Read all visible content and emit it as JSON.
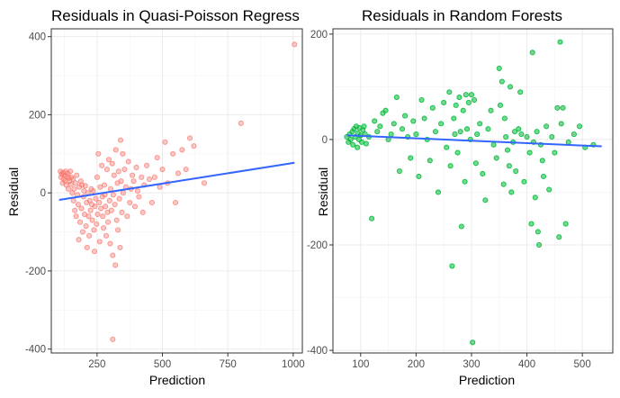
{
  "colors": {
    "qp_points": "#F8766D",
    "rf_points": "#00BA38",
    "smooth_line": "#3366FF"
  },
  "chart_data": [
    {
      "type": "scatter",
      "title": "Residuals in Quasi-Poisson Regress",
      "xlabel": "Prediction",
      "ylabel": "Residual",
      "xlim": [
        75,
        1035
      ],
      "ylim": [
        -410,
        420
      ],
      "xticks": [
        250,
        500,
        750,
        1000
      ],
      "yticks": [
        400,
        200,
        0,
        -200,
        -400
      ],
      "grid": true,
      "trend_line": {
        "x": [
          105,
          1005
        ],
        "y": [
          -18,
          77
        ]
      },
      "points": [
        [
          1005,
          380
        ],
        [
          800,
          178
        ],
        [
          310,
          -375
        ],
        [
          110,
          55
        ],
        [
          112,
          40
        ],
        [
          115,
          48
        ],
        [
          118,
          25
        ],
        [
          120,
          52
        ],
        [
          122,
          35
        ],
        [
          125,
          45
        ],
        [
          128,
          30
        ],
        [
          130,
          55
        ],
        [
          132,
          20
        ],
        [
          135,
          42
        ],
        [
          138,
          50
        ],
        [
          140,
          10
        ],
        [
          142,
          38
        ],
        [
          145,
          30
        ],
        [
          148,
          55
        ],
        [
          150,
          22
        ],
        [
          152,
          40
        ],
        [
          155,
          0
        ],
        [
          158,
          35
        ],
        [
          160,
          -20
        ],
        [
          162,
          10
        ],
        [
          165,
          -45
        ],
        [
          168,
          25
        ],
        [
          170,
          -60
        ],
        [
          172,
          45
        ],
        [
          175,
          -5
        ],
        [
          178,
          -30
        ],
        [
          180,
          -120
        ],
        [
          182,
          15
        ],
        [
          185,
          -75
        ],
        [
          188,
          30
        ],
        [
          190,
          -40
        ],
        [
          192,
          20
        ],
        [
          195,
          -100
        ],
        [
          198,
          -10
        ],
        [
          200,
          5
        ],
        [
          202,
          -55
        ],
        [
          205,
          18
        ],
        [
          208,
          -85
        ],
        [
          210,
          -25
        ],
        [
          212,
          -140
        ],
        [
          215,
          0
        ],
        [
          218,
          -60
        ],
        [
          220,
          -110
        ],
        [
          222,
          -20
        ],
        [
          225,
          -45
        ],
        [
          228,
          10
        ],
        [
          230,
          -30
        ],
        [
          232,
          -70
        ],
        [
          235,
          5
        ],
        [
          238,
          -95
        ],
        [
          240,
          -150
        ],
        [
          242,
          -35
        ],
        [
          245,
          -15
        ],
        [
          248,
          -80
        ],
        [
          250,
          40
        ],
        [
          252,
          -55
        ],
        [
          255,
          100
        ],
        [
          258,
          -25
        ],
        [
          260,
          -125
        ],
        [
          262,
          15
        ],
        [
          265,
          -40
        ],
        [
          268,
          70
        ],
        [
          270,
          -10
        ],
        [
          272,
          -60
        ],
        [
          275,
          -90
        ],
        [
          278,
          20
        ],
        [
          280,
          -5
        ],
        [
          282,
          -35
        ],
        [
          285,
          -110
        ],
        [
          288,
          60
        ],
        [
          290,
          -50
        ],
        [
          292,
          -75
        ],
        [
          295,
          85
        ],
        [
          298,
          -20
        ],
        [
          300,
          -130
        ],
        [
          302,
          10
        ],
        [
          305,
          -45
        ],
        [
          308,
          75
        ],
        [
          310,
          -160
        ],
        [
          312,
          -5
        ],
        [
          315,
          45
        ],
        [
          318,
          -30
        ],
        [
          320,
          -185
        ],
        [
          322,
          110
        ],
        [
          325,
          -70
        ],
        [
          328,
          25
        ],
        [
          330,
          -95
        ],
        [
          332,
          55
        ],
        [
          335,
          -15
        ],
        [
          338,
          -140
        ],
        [
          340,
          135
        ],
        [
          342,
          30
        ],
        [
          345,
          -50
        ],
        [
          348,
          100
        ],
        [
          350,
          0
        ],
        [
          355,
          60
        ],
        [
          360,
          15
        ],
        [
          365,
          -60
        ],
        [
          370,
          80
        ],
        [
          375,
          -25
        ],
        [
          380,
          10
        ],
        [
          385,
          45
        ],
        [
          390,
          30
        ],
        [
          395,
          -35
        ],
        [
          400,
          65
        ],
        [
          405,
          5
        ],
        [
          410,
          -10
        ],
        [
          420,
          40
        ],
        [
          425,
          -50
        ],
        [
          430,
          20
        ],
        [
          440,
          70
        ],
        [
          450,
          35
        ],
        [
          460,
          -25
        ],
        [
          470,
          40
        ],
        [
          480,
          90
        ],
        [
          490,
          15
        ],
        [
          500,
          60
        ],
        [
          510,
          130
        ],
        [
          520,
          25
        ],
        [
          540,
          100
        ],
        [
          550,
          -25
        ],
        [
          560,
          50
        ],
        [
          575,
          110
        ],
        [
          590,
          60
        ],
        [
          605,
          140
        ],
        [
          620,
          120
        ],
        [
          660,
          25
        ]
      ]
    },
    {
      "type": "scatter",
      "title": "Residuals in Random Forests",
      "xlabel": "Prediction",
      "ylabel": "Residual",
      "xlim": [
        50,
        555
      ],
      "ylim": [
        -405,
        210
      ],
      "xticks": [
        100,
        200,
        300,
        400,
        500
      ],
      "yticks": [
        200,
        0,
        -200,
        -400
      ],
      "grid": true,
      "trend_line": {
        "x": [
          75,
          535
        ],
        "y": [
          8,
          -13
        ]
      },
      "points": [
        [
          75,
          5
        ],
        [
          78,
          -5
        ],
        [
          80,
          10
        ],
        [
          82,
          0
        ],
        [
          85,
          15
        ],
        [
          86,
          -10
        ],
        [
          88,
          20
        ],
        [
          90,
          5
        ],
        [
          92,
          25
        ],
        [
          94,
          -15
        ],
        [
          95,
          12
        ],
        [
          97,
          0
        ],
        [
          98,
          22
        ],
        [
          100,
          8
        ],
        [
          102,
          -5
        ],
        [
          104,
          18
        ],
        [
          106,
          25
        ],
        [
          108,
          10
        ],
        [
          110,
          -8
        ],
        [
          115,
          5
        ],
        [
          120,
          -150
        ],
        [
          125,
          35
        ],
        [
          130,
          15
        ],
        [
          135,
          25
        ],
        [
          140,
          50
        ],
        [
          145,
          55
        ],
        [
          150,
          0
        ],
        [
          155,
          10
        ],
        [
          160,
          30
        ],
        [
          165,
          80
        ],
        [
          170,
          -60
        ],
        [
          175,
          20
        ],
        [
          180,
          45
        ],
        [
          185,
          5
        ],
        [
          190,
          -35
        ],
        [
          195,
          35
        ],
        [
          200,
          10
        ],
        [
          205,
          -70
        ],
        [
          210,
          75
        ],
        [
          215,
          40
        ],
        [
          220,
          0
        ],
        [
          225,
          -40
        ],
        [
          230,
          60
        ],
        [
          235,
          15
        ],
        [
          240,
          -100
        ],
        [
          245,
          30
        ],
        [
          250,
          70
        ],
        [
          255,
          -15
        ],
        [
          260,
          90
        ],
        [
          262,
          -50
        ],
        [
          265,
          -240
        ],
        [
          268,
          40
        ],
        [
          270,
          10
        ],
        [
          272,
          65
        ],
        [
          275,
          -25
        ],
        [
          278,
          80
        ],
        [
          280,
          15
        ],
        [
          282,
          -165
        ],
        [
          285,
          55
        ],
        [
          288,
          -80
        ],
        [
          290,
          85
        ],
        [
          292,
          20
        ],
        [
          295,
          70
        ],
        [
          298,
          0
        ],
        [
          300,
          85
        ],
        [
          302,
          -385
        ],
        [
          305,
          75
        ],
        [
          308,
          -45
        ],
        [
          310,
          10
        ],
        [
          315,
          30
        ],
        [
          320,
          -65
        ],
        [
          325,
          -115
        ],
        [
          330,
          20
        ],
        [
          335,
          55
        ],
        [
          340,
          -10
        ],
        [
          345,
          -35
        ],
        [
          350,
          135
        ],
        [
          352,
          65
        ],
        [
          355,
          110
        ],
        [
          358,
          -85
        ],
        [
          360,
          40
        ],
        [
          362,
          5
        ],
        [
          365,
          -20
        ],
        [
          368,
          -50
        ],
        [
          370,
          100
        ],
        [
          372,
          -100
        ],
        [
          375,
          -5
        ],
        [
          378,
          15
        ],
        [
          380,
          -60
        ],
        [
          385,
          20
        ],
        [
          388,
          90
        ],
        [
          390,
          10
        ],
        [
          395,
          -80
        ],
        [
          400,
          5
        ],
        [
          405,
          -25
        ],
        [
          408,
          -160
        ],
        [
          410,
          165
        ],
        [
          412,
          -5
        ],
        [
          415,
          -110
        ],
        [
          418,
          15
        ],
        [
          420,
          -175
        ],
        [
          422,
          -200
        ],
        [
          425,
          -10
        ],
        [
          428,
          -40
        ],
        [
          430,
          -70
        ],
        [
          435,
          25
        ],
        [
          440,
          -95
        ],
        [
          445,
          5
        ],
        [
          450,
          -25
        ],
        [
          455,
          60
        ],
        [
          458,
          -185
        ],
        [
          460,
          185
        ],
        [
          462,
          30
        ],
        [
          465,
          60
        ],
        [
          470,
          -160
        ],
        [
          475,
          -5
        ],
        [
          485,
          10
        ],
        [
          495,
          25
        ],
        [
          505,
          -15
        ],
        [
          520,
          -10
        ]
      ]
    }
  ]
}
